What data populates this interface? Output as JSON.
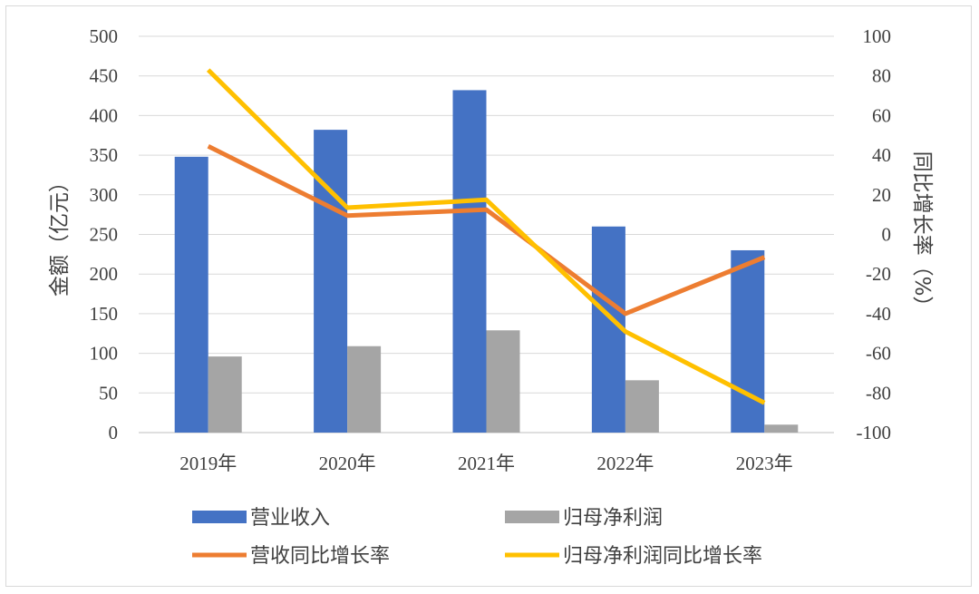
{
  "chart_data": {
    "type": "bar+line",
    "categories": [
      "2019年",
      "2020年",
      "2021年",
      "2022年",
      "2023年"
    ],
    "bar_series": [
      {
        "name": "营业收入",
        "values": [
          348,
          382,
          432,
          260,
          230
        ],
        "color": "#4472C4"
      },
      {
        "name": "归母净利润",
        "values": [
          96,
          109,
          129,
          66,
          10
        ],
        "color": "#A5A5A5"
      }
    ],
    "line_series": [
      {
        "name": "营收同比增长率",
        "values": [
          44.5,
          9.5,
          12.5,
          -40,
          -11.5
        ],
        "color": "#ED7D31"
      },
      {
        "name": "归母净利润同比增长率",
        "values": [
          83,
          13.5,
          17.5,
          -49,
          -85
        ],
        "color": "#FFC000"
      }
    ],
    "ylabel_left": "金额（亿元）",
    "ylabel_right": "同比增长率（%）",
    "ylim_left": [
      0,
      500
    ],
    "ylim_right": [
      -100,
      100
    ],
    "yticks_left": [
      "0",
      "50",
      "100",
      "150",
      "200",
      "250",
      "300",
      "350",
      "400",
      "450",
      "500"
    ],
    "yticks_right": [
      "-100",
      "-80",
      "-60",
      "-40",
      "-20",
      "0",
      "20",
      "40",
      "60",
      "80",
      "100"
    ],
    "grid": true,
    "legend": {
      "position": "bottom",
      "items": [
        "营业收入",
        "归母净利润",
        "营收同比增长率",
        "归母净利润同比增长率"
      ]
    }
  }
}
